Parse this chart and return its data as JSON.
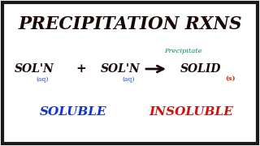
{
  "background_color": "#ffffff",
  "border_color": "#1a1a1a",
  "title": "PRECIPITATION RXNS",
  "title_color": "#1a0808",
  "title_fontsize": 15.5,
  "soln1": "SOL'N",
  "soln1_sub": "(aq)",
  "soln2": "SOL'N",
  "soln2_sub": "(aq)",
  "plus": "+",
  "solid": "SOLID",
  "solid_sub": "(s)",
  "precipitate_label": "Precipitate",
  "precipitate_color": "#008866",
  "soln_color": "#1a0808",
  "solid_color": "#1a0808",
  "solid_sub_color": "#cc2200",
  "sub_color": "#2244cc",
  "soluble_label": "SOLUBLE",
  "soluble_color": "#1133cc",
  "insoluble_label": "INSOLUBLE",
  "insoluble_color": "#cc1111",
  "arrow_color": "#1a0808"
}
